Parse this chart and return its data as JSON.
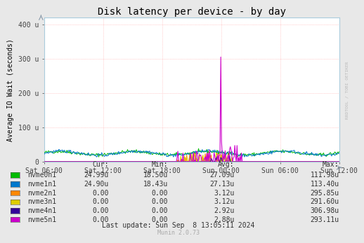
{
  "title": "Disk latency per device - by day",
  "ylabel": "Average IO Wait (seconds)",
  "fig_bg_color": "#e8e8e8",
  "plot_bg_color": "#ffffff",
  "grid_color": "#ffaaaa",
  "grid_linestyle": ":",
  "ylim": [
    0,
    420
  ],
  "yticks": [
    0,
    100,
    200,
    300,
    400
  ],
  "ytick_labels": [
    "0",
    "100 u",
    "200 u",
    "300 u",
    "400 u"
  ],
  "xtick_labels": [
    "Sat 06:00",
    "Sat 12:00",
    "Sat 18:00",
    "Sun 00:00",
    "Sun 06:00",
    "Sun 12:00"
  ],
  "xtick_positions": [
    0.0,
    0.2,
    0.4,
    0.6,
    0.8,
    1.0
  ],
  "series": [
    {
      "name": "nvme0n1",
      "color": "#00bb00"
    },
    {
      "name": "nvme1n1",
      "color": "#0077cc"
    },
    {
      "name": "nvme2n1",
      "color": "#ff8800"
    },
    {
      "name": "nvme3n1",
      "color": "#ddcc00"
    },
    {
      "name": "nvme4n1",
      "color": "#330099"
    },
    {
      "name": "nvme5n1",
      "color": "#cc00cc"
    }
  ],
  "legend_headers": [
    "Cur:",
    "Min:",
    "Avg:",
    "Max:"
  ],
  "legend_rows": [
    [
      "nvme0n1",
      "24.99u",
      "18.50u",
      "27.09u",
      "111.98u"
    ],
    [
      "nvme1n1",
      "24.90u",
      "18.43u",
      "27.13u",
      "113.40u"
    ],
    [
      "nvme2n1",
      "0.00",
      "0.00",
      "3.12u",
      "295.85u"
    ],
    [
      "nvme3n1",
      "0.00",
      "0.00",
      "3.12u",
      "291.60u"
    ],
    [
      "nvme4n1",
      "0.00",
      "0.00",
      "2.92u",
      "306.98u"
    ],
    [
      "nvme5n1",
      "0.00",
      "0.00",
      "2.88u",
      "293.11u"
    ]
  ],
  "last_update": "Last update: Sun Sep  8 13:05:11 2024",
  "munin_version": "Munin 2.0.73",
  "watermark": "RRDTOOL / TOBI OETIKER",
  "title_fontsize": 10,
  "axis_label_fontsize": 7,
  "tick_fontsize": 7,
  "legend_fontsize": 7,
  "small_fontsize": 6
}
